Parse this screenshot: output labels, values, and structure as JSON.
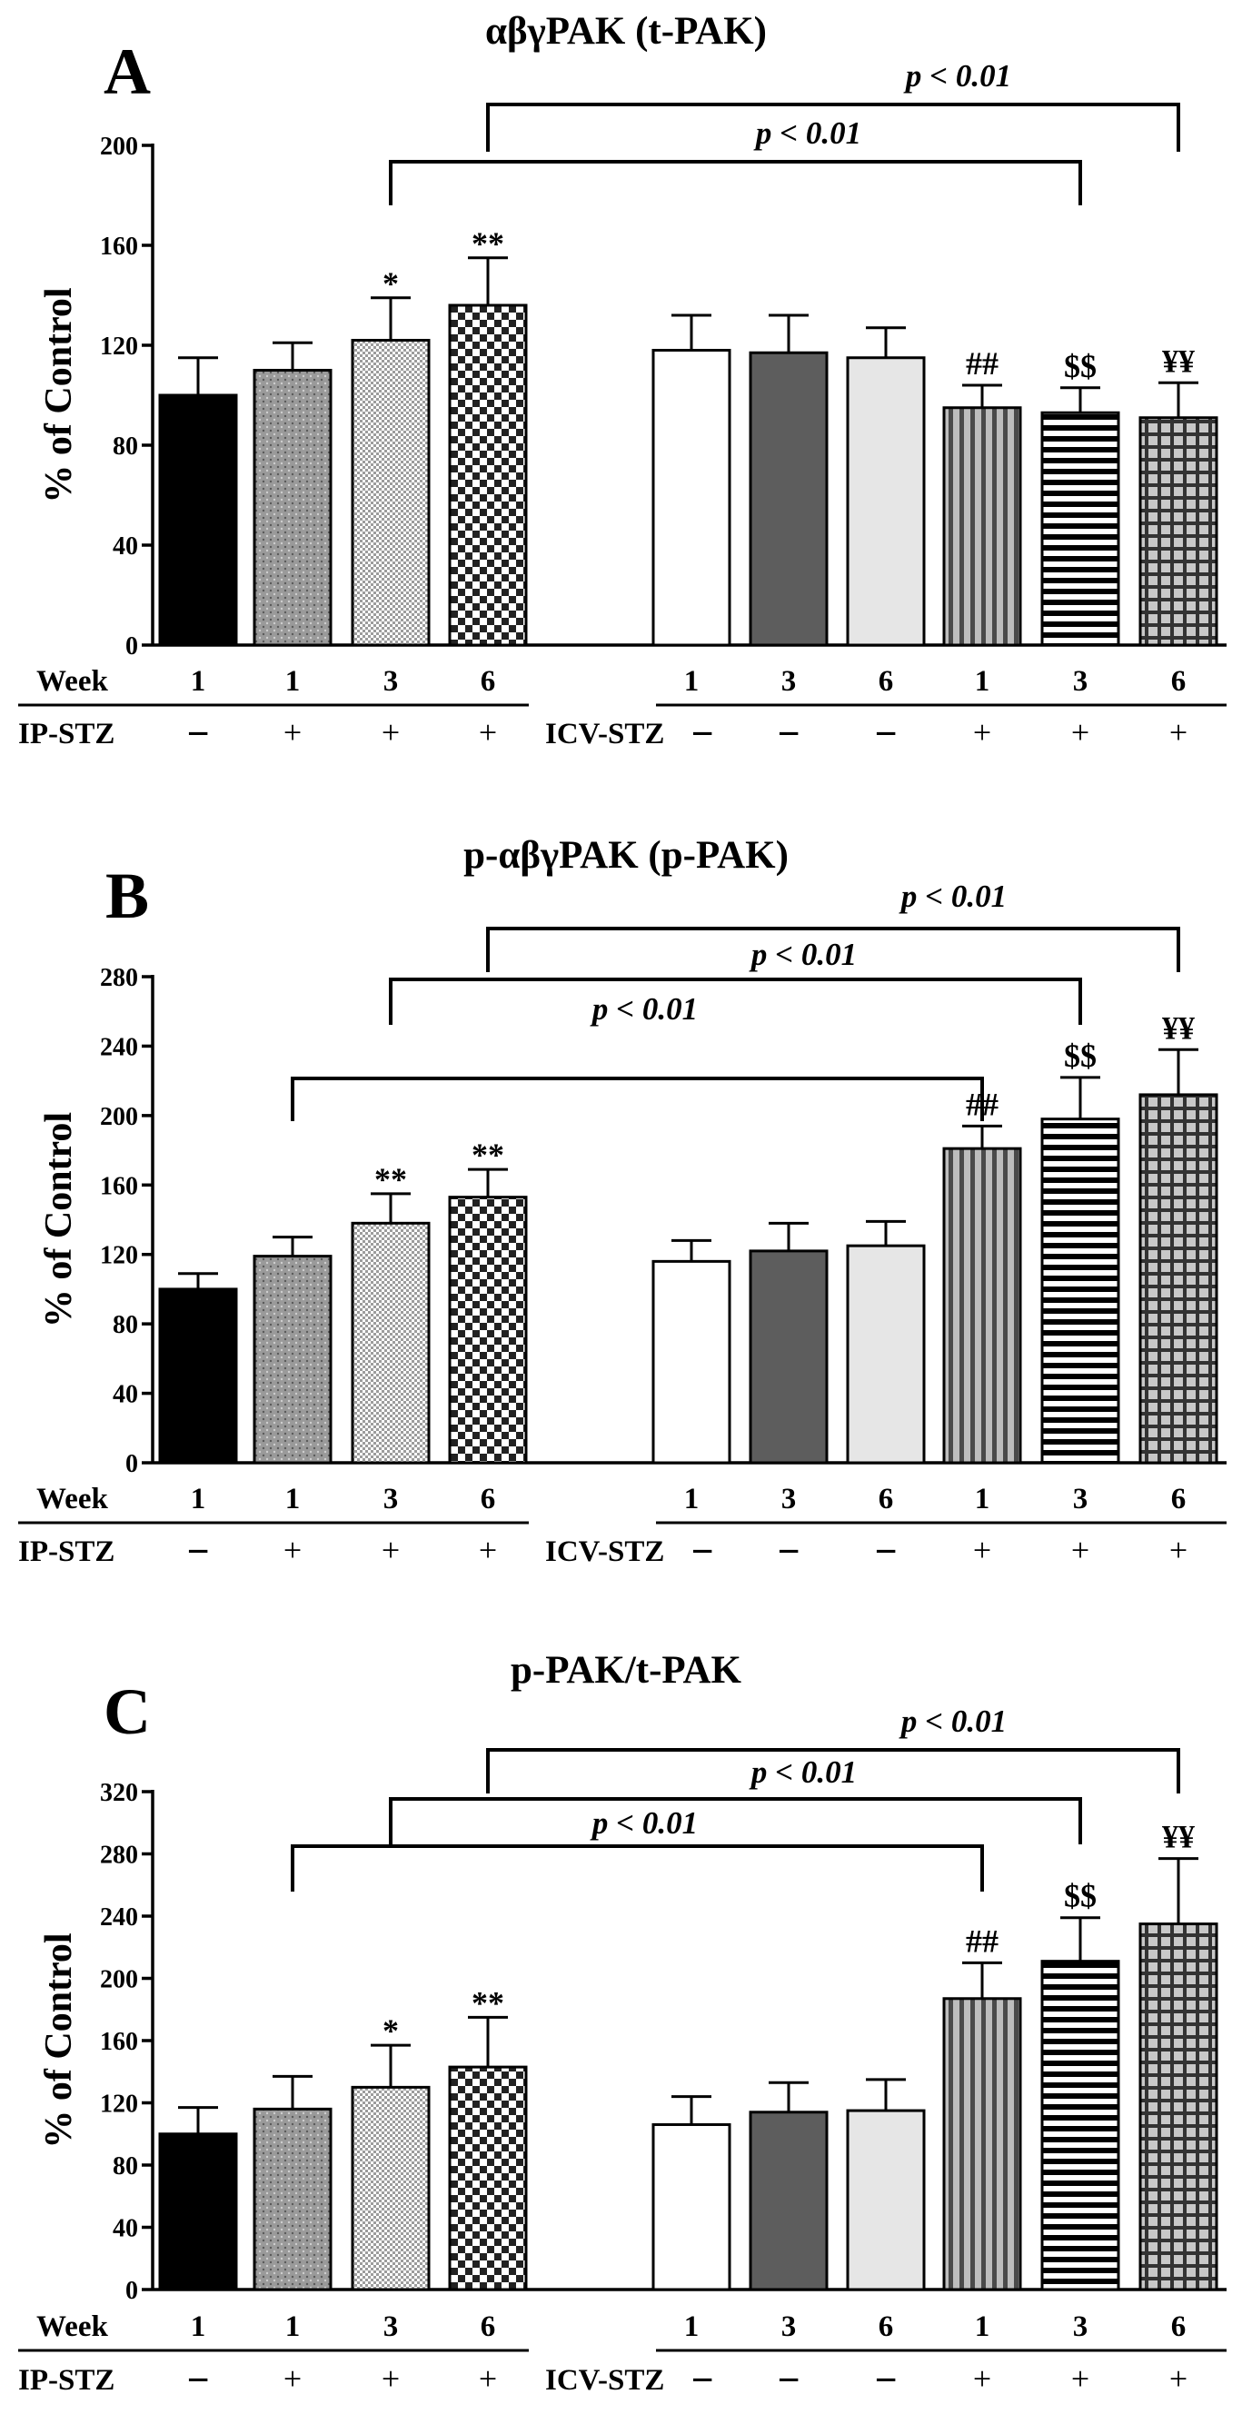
{
  "chart_data": [
    {
      "type": "bar",
      "panel": "A",
      "title": "αβγPAK (t-PAK)",
      "ylabel": "% of Control",
      "ylim": [
        0,
        200
      ],
      "yticks": [
        0,
        40,
        80,
        120,
        160,
        200
      ],
      "categories": [
        "IP 1 Control",
        "IP 1",
        "IP 3",
        "IP 6",
        "ICV 1 Control",
        "ICV 3 Control",
        "ICV 6 Control",
        "ICV 1",
        "ICV 3",
        "ICV 6"
      ],
      "values": [
        100,
        110,
        122,
        136,
        118,
        117,
        115,
        95,
        93,
        91
      ],
      "errors": [
        15,
        11,
        17,
        19,
        14,
        15,
        12,
        9,
        10,
        14
      ],
      "annotations": [
        "",
        "",
        "*",
        "**",
        "",
        "",
        "",
        "##",
        "$$",
        "¥¥"
      ],
      "week": [
        "1",
        "1",
        "3",
        "6",
        "1",
        "3",
        "6",
        "1",
        "3",
        "6"
      ],
      "treatment": [
        "−",
        "+",
        "+",
        "+",
        "−",
        "−",
        "−",
        "+",
        "+",
        "+"
      ],
      "brackets": [
        {
          "from": 2,
          "to": 8,
          "label": "p < 0.01"
        },
        {
          "from": 3,
          "to": 9,
          "label": "p < 0.01"
        }
      ]
    },
    {
      "type": "bar",
      "panel": "B",
      "title": "p-αβγPAK (p-PAK)",
      "ylabel": "% of Control",
      "ylim": [
        0,
        280
      ],
      "yticks": [
        0,
        40,
        80,
        120,
        160,
        200,
        240,
        280
      ],
      "categories": [
        "IP 1 Control",
        "IP 1",
        "IP 3",
        "IP 6",
        "ICV 1 Control",
        "ICV 3 Control",
        "ICV 6 Control",
        "ICV 1",
        "ICV 3",
        "ICV 6"
      ],
      "values": [
        100,
        119,
        138,
        153,
        116,
        122,
        125,
        181,
        198,
        212
      ],
      "errors": [
        9,
        11,
        17,
        16,
        12,
        16,
        14,
        13,
        24,
        26
      ],
      "annotations": [
        "",
        "",
        "**",
        "**",
        "",
        "",
        "",
        "##",
        "$$",
        "¥¥"
      ],
      "week": [
        "1",
        "1",
        "3",
        "6",
        "1",
        "3",
        "6",
        "1",
        "3",
        "6"
      ],
      "treatment": [
        "−",
        "+",
        "+",
        "+",
        "−",
        "−",
        "−",
        "+",
        "+",
        "+"
      ],
      "brackets": [
        {
          "from": 1,
          "to": 7,
          "label": "p < 0.01"
        },
        {
          "from": 2,
          "to": 8,
          "label": "p < 0.01"
        },
        {
          "from": 3,
          "to": 9,
          "label": "p < 0.01"
        }
      ]
    },
    {
      "type": "bar",
      "panel": "C",
      "title": "p-PAK/t-PAK",
      "ylabel": "% of Control",
      "ylim": [
        0,
        320
      ],
      "yticks": [
        0,
        40,
        80,
        120,
        160,
        200,
        240,
        280,
        320
      ],
      "categories": [
        "IP 1 Control",
        "IP 1",
        "IP 3",
        "IP 6",
        "ICV 1 Control",
        "ICV 3 Control",
        "ICV 6 Control",
        "ICV 1",
        "ICV 3",
        "ICV 6"
      ],
      "values": [
        100,
        116,
        130,
        143,
        106,
        114,
        115,
        187,
        211,
        235
      ],
      "errors": [
        17,
        21,
        27,
        32,
        18,
        19,
        20,
        23,
        28,
        42
      ],
      "annotations": [
        "",
        "",
        "*",
        "**",
        "",
        "",
        "",
        "##",
        "$$",
        "¥¥"
      ],
      "week": [
        "1",
        "1",
        "3",
        "6",
        "1",
        "3",
        "6",
        "1",
        "3",
        "6"
      ],
      "treatment": [
        "−",
        "+",
        "+",
        "+",
        "−",
        "−",
        "−",
        "+",
        "+",
        "+"
      ],
      "brackets": [
        {
          "from": 1,
          "to": 7,
          "label": "p < 0.01"
        },
        {
          "from": 2,
          "to": 8,
          "label": "p < 0.01"
        },
        {
          "from": 3,
          "to": 9,
          "label": "p < 0.01"
        }
      ]
    }
  ],
  "rows": {
    "week_label": "Week",
    "ip_label": "IP-STZ",
    "icv_label": "ICV-STZ"
  }
}
